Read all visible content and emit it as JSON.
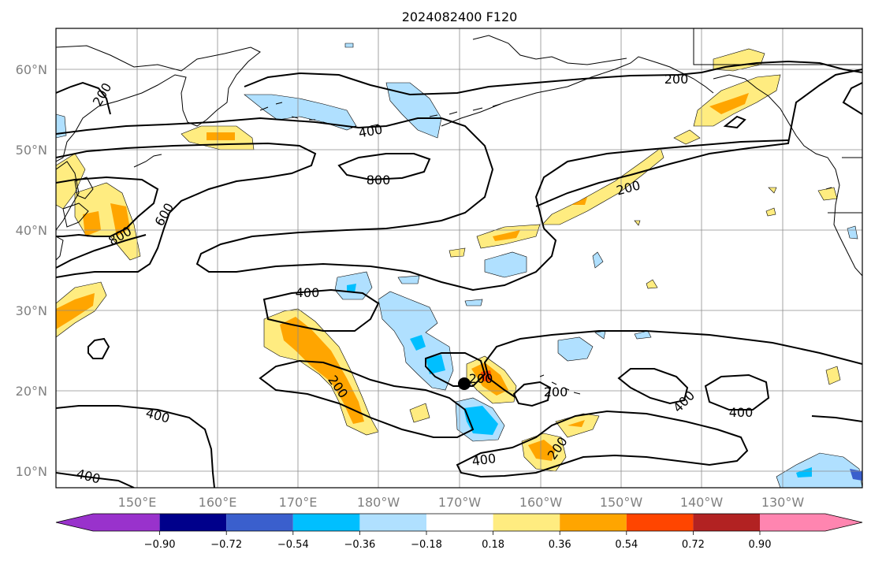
{
  "title": "2024082400 F120",
  "map": {
    "lat_ticks": [
      "10°N",
      "20°N",
      "30°N",
      "40°N",
      "50°N",
      "60°N"
    ],
    "lon_ticks": [
      "150°E",
      "160°E",
      "170°E",
      "180°W",
      "170°W",
      "160°W",
      "150°W",
      "140°W",
      "130°W"
    ],
    "contour_labels": [
      "200",
      "200",
      "200",
      "200",
      "200",
      "200",
      "400",
      "400",
      "400",
      "400",
      "400",
      "400",
      "400",
      "600",
      "800",
      "800"
    ],
    "marker": "storm-center-dot",
    "grid": true
  },
  "colorbar": {
    "ticks": [
      "−0.90",
      "−0.72",
      "−0.54",
      "−0.36",
      "−0.18",
      "0.18",
      "0.36",
      "0.54",
      "0.72",
      "0.90"
    ],
    "colors": [
      "#9932cc",
      "#00008b",
      "#3a5fcd",
      "#00bfff",
      "#b0e0ff",
      "#ffffff",
      "#ffec80",
      "#ffa500",
      "#ff4500",
      "#b22222",
      "#ff85b0"
    ]
  }
}
